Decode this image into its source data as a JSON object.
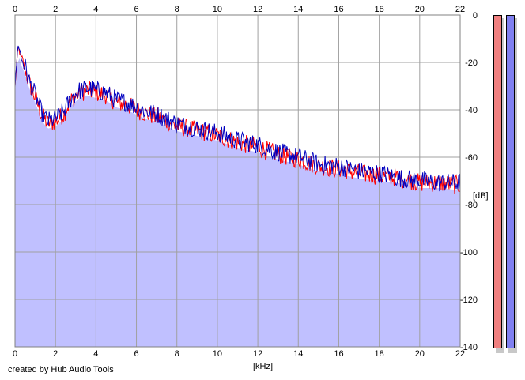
{
  "credit": "created by Hub Audio Tools",
  "meters": {
    "left_color": "#f08080",
    "right_color": "#8080f0"
  },
  "colors": {
    "fill": "#c0c0ff",
    "series_left": "#ff0000",
    "series_right": "#0000c0",
    "grid": "#a0a0a0"
  },
  "chart_data": {
    "type": "line",
    "xlabel": "[kHz]",
    "ylabel": "[dB]",
    "xlim": [
      0,
      22
    ],
    "ylim": [
      -140,
      0
    ],
    "x_ticks": [
      "0",
      "2",
      "4",
      "6",
      "8",
      "10",
      "12",
      "14",
      "16",
      "18",
      "20",
      "22"
    ],
    "y_ticks": [
      "0",
      "-20",
      "-40",
      "-60",
      "-80",
      "-100",
      "-120",
      "-140"
    ],
    "grid": true,
    "series": [
      {
        "channel": "left",
        "x": [
          0,
          0.15,
          0.3,
          0.5,
          0.7,
          1.0,
          1.3,
          1.6,
          2.0,
          2.4,
          2.8,
          3.2,
          3.6,
          4.0,
          4.5,
          5.0,
          5.5,
          6.0,
          6.5,
          7.0,
          7.5,
          8.0,
          9.0,
          10.0,
          11.0,
          12.0,
          13.0,
          14.0,
          15.0,
          16.0,
          17.0,
          18.0,
          19.0,
          20.0,
          21.0,
          22.0
        ],
        "values": [
          -30,
          -13,
          -18,
          -22,
          -28,
          -34,
          -41,
          -45,
          -44,
          -41,
          -35,
          -32,
          -31,
          -32,
          -33,
          -36,
          -37,
          -39,
          -41,
          -42,
          -44,
          -46,
          -48,
          -50,
          -53,
          -55,
          -58,
          -60,
          -63,
          -64,
          -66,
          -67,
          -68,
          -70,
          -70,
          -71
        ]
      },
      {
        "channel": "right",
        "x": [
          0,
          0.15,
          0.3,
          0.5,
          0.7,
          1.0,
          1.3,
          1.6,
          2.0,
          2.4,
          2.8,
          3.2,
          3.6,
          4.0,
          4.5,
          5.0,
          5.5,
          6.0,
          6.5,
          7.0,
          7.5,
          8.0,
          9.0,
          10.0,
          11.0,
          12.0,
          13.0,
          14.0,
          15.0,
          16.0,
          17.0,
          18.0,
          19.0,
          20.0,
          21.0,
          22.0
        ],
        "values": [
          -30,
          -12,
          -17,
          -21,
          -27,
          -33,
          -40,
          -44,
          -43,
          -40,
          -34,
          -31,
          -30,
          -31,
          -32,
          -35,
          -36,
          -38,
          -40,
          -41,
          -43,
          -45,
          -47,
          -49,
          -52,
          -54,
          -57,
          -59,
          -62,
          -63,
          -65,
          -66,
          -68,
          -69,
          -70,
          -70
        ]
      }
    ]
  }
}
